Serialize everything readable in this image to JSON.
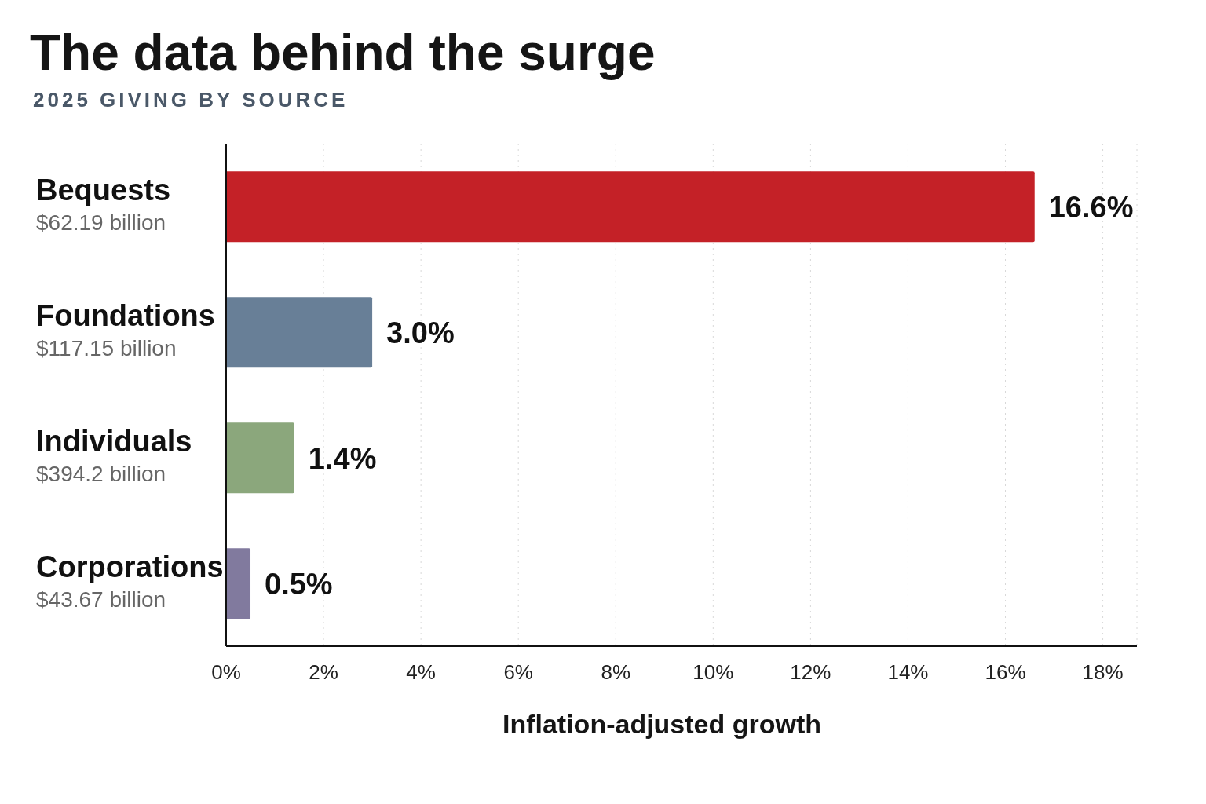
{
  "chart_data": {
    "type": "bar",
    "orientation": "horizontal",
    "title": "The data behind the surge",
    "subtitle": "2025 GIVING BY SOURCE",
    "xlabel": "Inflation-adjusted growth",
    "categories": [
      "Bequests\n$62.19 billion",
      "Foundations\n$117.15 billion",
      "Individuals\n$394.2 billion",
      "Corporations\n$43.67 billion"
    ],
    "values": [
      16.6,
      3.0,
      1.4,
      0.5
    ],
    "colors": [
      "#c42127",
      "#687f97",
      "#8ba77c",
      "#817a9e"
    ],
    "value_labels": [
      "16.6%",
      "3.0%",
      "1.4%",
      "0.5%"
    ],
    "xlim": [
      0,
      18.7
    ],
    "xticks": [
      {
        "value": 0,
        "label": "0%"
      },
      {
        "value": 2,
        "label": "2%"
      },
      {
        "value": 4,
        "label": "4%"
      },
      {
        "value": 6,
        "label": "6%"
      },
      {
        "value": 8,
        "label": "8%"
      },
      {
        "value": 10,
        "label": "10%"
      },
      {
        "value": 12,
        "label": "12%"
      },
      {
        "value": 14,
        "label": "14%"
      },
      {
        "value": 16,
        "label": "16%"
      },
      {
        "value": 18,
        "label": "18%"
      }
    ],
    "grid": "x"
  }
}
